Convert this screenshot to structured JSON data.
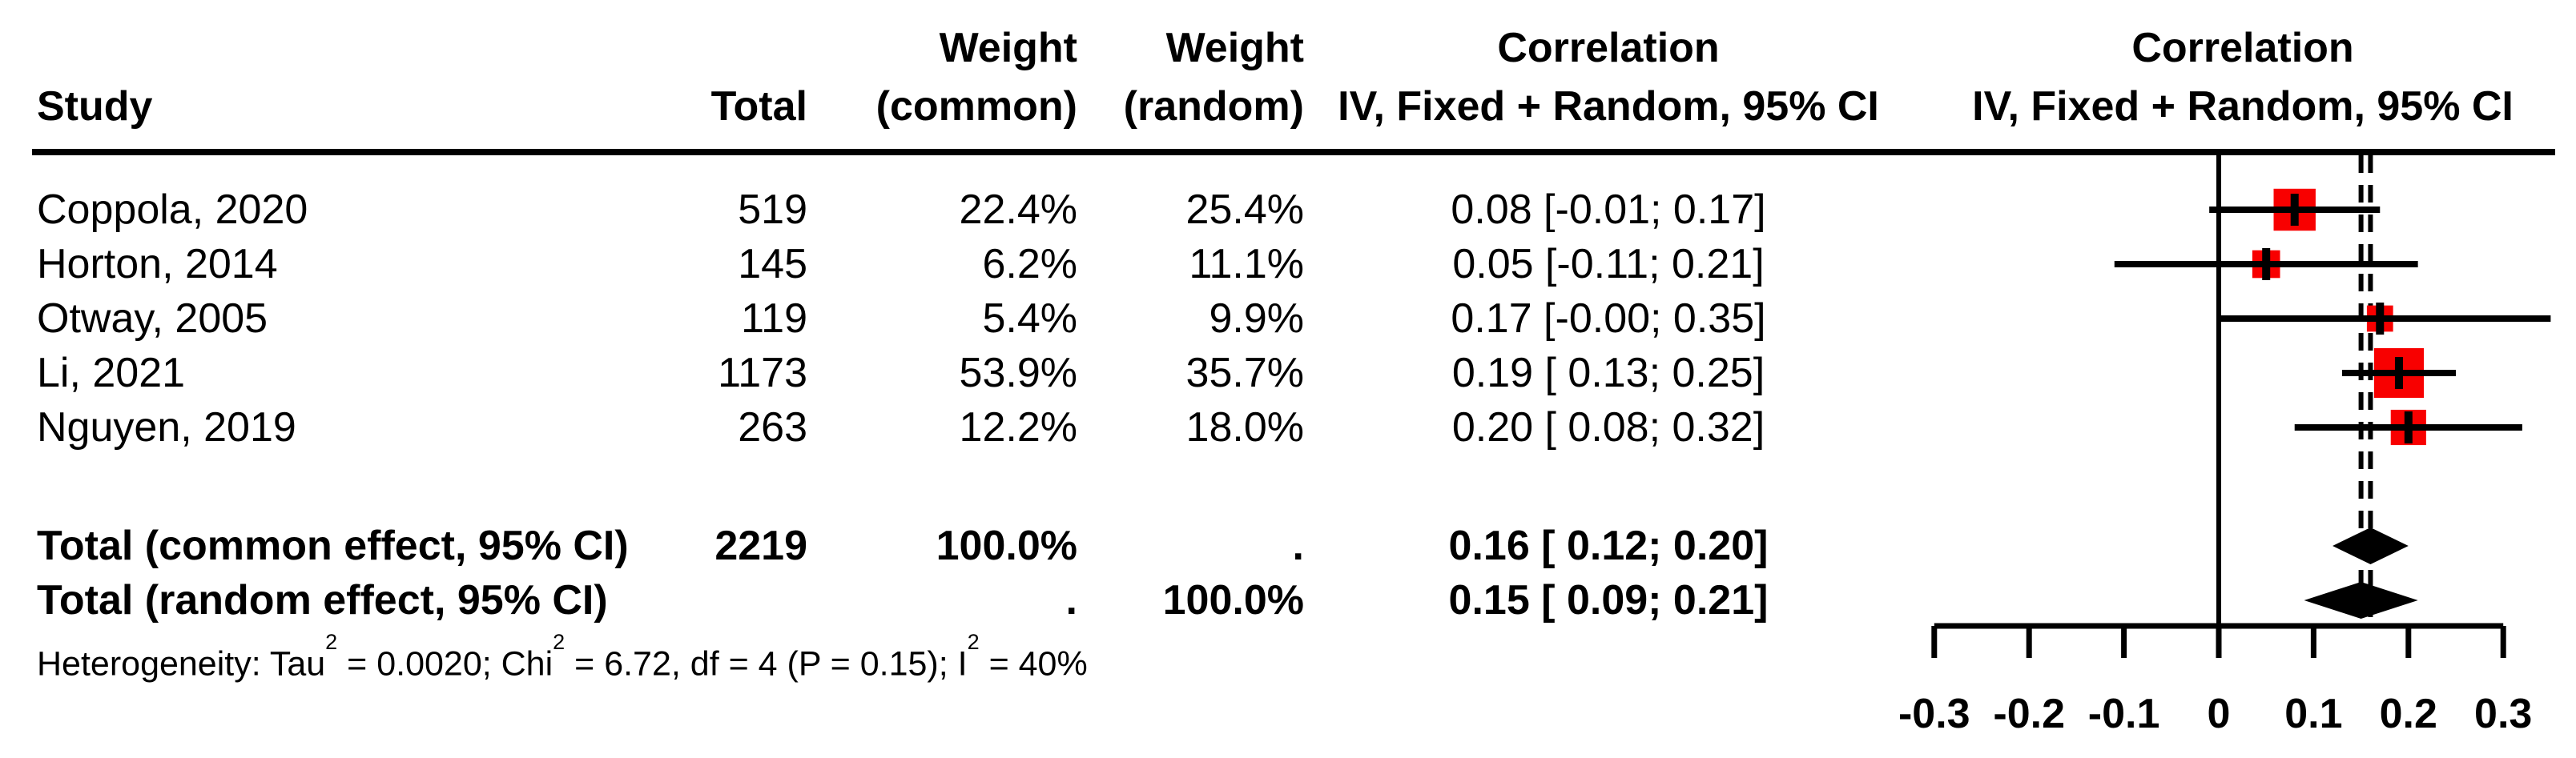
{
  "header": {
    "study": "Study",
    "total": "Total",
    "weight_top": "Weight",
    "weight_common_bottom": "(common)",
    "weight_random_bottom": "(random)",
    "correlation_top": "Correlation",
    "correlation_bottom": "IV, Fixed + Random, 95% CI",
    "plot_top": "Correlation",
    "plot_bottom": "IV, Fixed + Random, 95% CI"
  },
  "chart_data": {
    "type": "forest",
    "effect_measure": "Correlation",
    "x_axis": {
      "min": -0.3,
      "max": 0.3,
      "ticks": [
        -0.3,
        -0.2,
        -0.1,
        0,
        0.1,
        0.2,
        0.3
      ],
      "labels": [
        "-0.3",
        "-0.2",
        "-0.1",
        "0",
        "0.1",
        "0.2",
        "0.3"
      ]
    },
    "reference_line": 0,
    "pooled_dashed_lines": [
      0.16,
      0.15
    ],
    "marker_color": "#f80000",
    "line_color": "#000000",
    "studies": [
      {
        "name": "Coppola, 2020",
        "total": "519",
        "weight_common": "22.4%",
        "weight_random": "25.4%",
        "ci_text": "0.08 [-0.01; 0.17]",
        "estimate": 0.08,
        "lower": -0.01,
        "upper": 0.17,
        "w_common": 22.4,
        "w_random": 25.4
      },
      {
        "name": "Horton, 2014",
        "total": "145",
        "weight_common": "6.2%",
        "weight_random": "11.1%",
        "ci_text": "0.05 [-0.11; 0.21]",
        "estimate": 0.05,
        "lower": -0.11,
        "upper": 0.21,
        "w_common": 6.2,
        "w_random": 11.1
      },
      {
        "name": "Otway, 2005",
        "total": "119",
        "weight_common": "5.4%",
        "weight_random": "9.9%",
        "ci_text": "0.17 [-0.00; 0.35]",
        "estimate": 0.17,
        "lower": -0.0,
        "upper": 0.35,
        "w_common": 5.4,
        "w_random": 9.9
      },
      {
        "name": "Li, 2021",
        "total": "1173",
        "weight_common": "53.9%",
        "weight_random": "35.7%",
        "ci_text": "0.19 [ 0.13; 0.25]",
        "estimate": 0.19,
        "lower": 0.13,
        "upper": 0.25,
        "w_common": 53.9,
        "w_random": 35.7
      },
      {
        "name": "Nguyen, 2019",
        "total": "263",
        "weight_common": "12.2%",
        "weight_random": "18.0%",
        "ci_text": "0.20 [ 0.08; 0.32]",
        "estimate": 0.2,
        "lower": 0.08,
        "upper": 0.32,
        "w_common": 12.2,
        "w_random": 18.0
      }
    ],
    "totals": [
      {
        "name": "Total (common effect, 95% CI)",
        "total": "2219",
        "weight_common": "100.0%",
        "weight_random": ".",
        "ci_text": "0.16 [ 0.12; 0.20]",
        "estimate": 0.16,
        "lower": 0.12,
        "upper": 0.2
      },
      {
        "name": "Total (random effect, 95% CI)",
        "total": "",
        "weight_common": ".",
        "weight_random": "100.0%",
        "ci_text": "0.15 [ 0.09; 0.21]",
        "estimate": 0.15,
        "lower": 0.09,
        "upper": 0.21
      }
    ],
    "heterogeneity": [
      {
        "text": "Heterogeneity: Tau"
      },
      {
        "sup": "2"
      },
      {
        "text": " = 0.0020; Chi"
      },
      {
        "sup": "2"
      },
      {
        "text": " = 6.72, df = 4 (P = 0.15); I"
      },
      {
        "sup": "2"
      },
      {
        "text": " = 40%"
      }
    ]
  }
}
